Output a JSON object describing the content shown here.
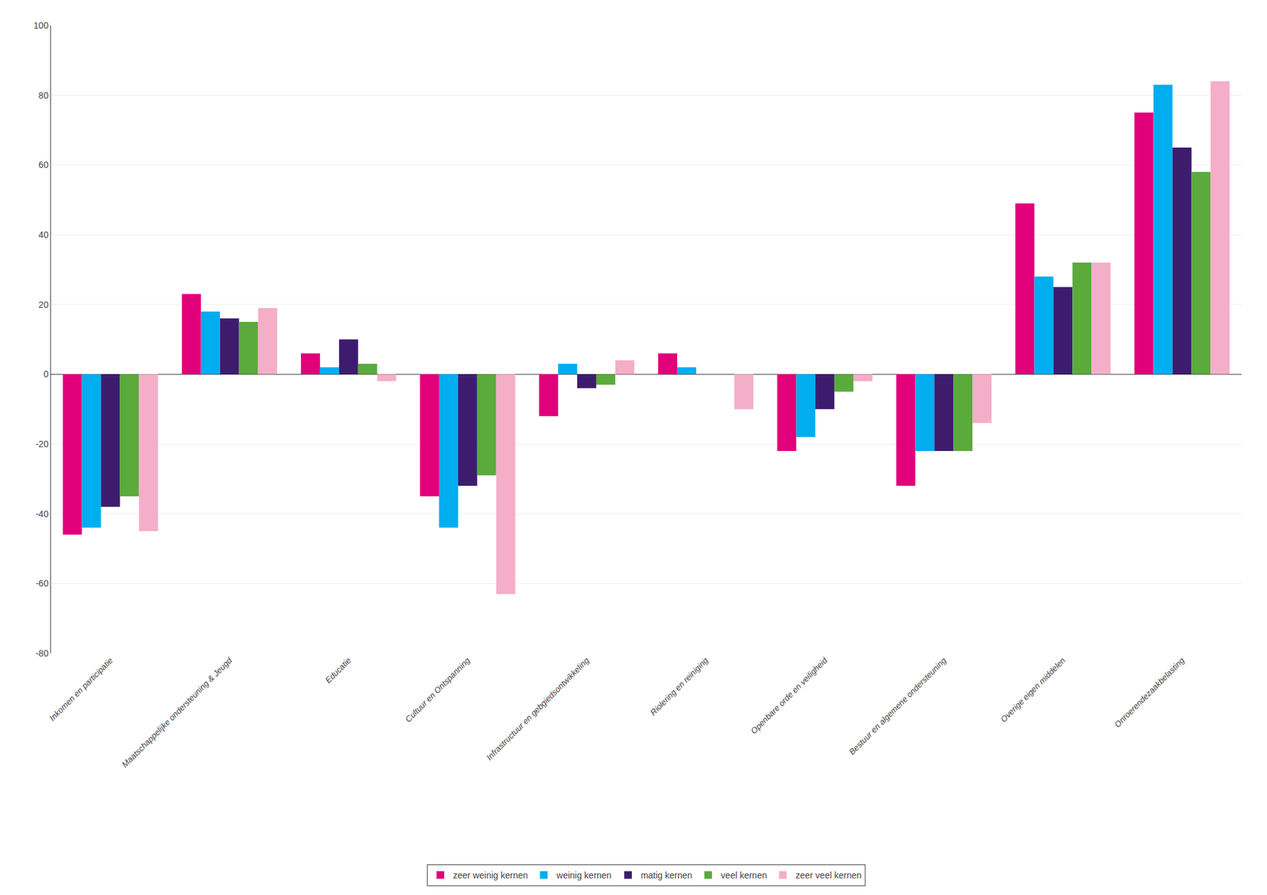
{
  "chart_data": {
    "type": "bar",
    "categories": [
      "Inkomen en participatie",
      "Maatschappelijke ondersteuning & Jeugd",
      "Educatie",
      "Cultuur en Ontspanning",
      "Infrastructuur en gebgiedsontwikkeling",
      "Riolering en reiniging",
      "Openbare orde en veiligheid",
      "Bestuur en algemene ondersteuning",
      "Overige eigen middelen",
      "Onroerendezaakbelasting"
    ],
    "series": [
      {
        "name": "zeer weinig kernen",
        "color": "#e2007a",
        "values": [
          -46,
          23,
          6,
          -35,
          -12,
          6,
          -22,
          -32,
          49,
          75
        ]
      },
      {
        "name": "weinig kernen",
        "color": "#00adef",
        "values": [
          -44,
          18,
          2,
          -44,
          3,
          2,
          -18,
          -22,
          28,
          83
        ]
      },
      {
        "name": "matig kernen",
        "color": "#3d1c6e",
        "values": [
          -38,
          16,
          10,
          -32,
          -4,
          0,
          -10,
          -22,
          25,
          65
        ]
      },
      {
        "name": "veel kernen",
        "color": "#5aaa3c",
        "values": [
          -35,
          15,
          3,
          -29,
          -3,
          0,
          -5,
          -22,
          32,
          58
        ]
      },
      {
        "name": "zeer veel kernen",
        "color": "#f4aec8",
        "values": [
          -45,
          19,
          -2,
          -63,
          4,
          -10,
          -2,
          -14,
          32,
          84
        ]
      }
    ],
    "ylim": [
      -80,
      100
    ],
    "yticks": [
      -80,
      -60,
      -40,
      -20,
      0,
      20,
      40,
      60,
      80,
      100
    ],
    "grid": true,
    "legend": "bottom"
  }
}
